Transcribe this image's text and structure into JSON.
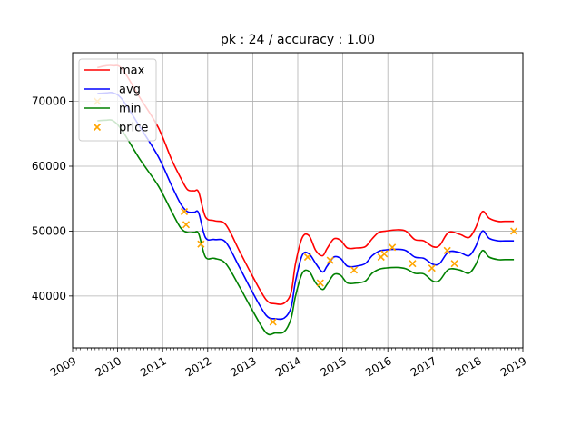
{
  "chart_data": {
    "type": "line",
    "title": "pk : 24 / accuracy : 1.00",
    "xlabel": "",
    "ylabel": "",
    "grid": true,
    "legend_position": "top-left",
    "xlim": [
      2009.0,
      2019.0
    ],
    "ylim": [
      32000,
      77500
    ],
    "x_ticks": [
      2009,
      2010,
      2011,
      2012,
      2013,
      2014,
      2015,
      2016,
      2017,
      2018,
      2019
    ],
    "x_tick_labels": [
      "2009",
      "2010",
      "2011",
      "2012",
      "2013",
      "2014",
      "2015",
      "2016",
      "2017",
      "2018",
      "2019"
    ],
    "y_ticks": [
      40000,
      50000,
      60000,
      70000
    ],
    "y_tick_labels": [
      "40000",
      "50000",
      "60000",
      "70000"
    ],
    "series": [
      {
        "name": "max",
        "kind": "line",
        "color": "#ff0000",
        "x": [
          2009.55,
          2009.75,
          2009.9,
          2010.1,
          2010.5,
          2010.9,
          2011.2,
          2011.4,
          2011.55,
          2011.7,
          2011.8,
          2011.95,
          2012.15,
          2012.4,
          2012.7,
          2013.0,
          2013.3,
          2013.5,
          2013.7,
          2013.85,
          2013.95,
          2014.1,
          2014.25,
          2014.4,
          2014.55,
          2014.65,
          2014.8,
          2014.95,
          2015.1,
          2015.3,
          2015.5,
          2015.65,
          2015.8,
          2015.95,
          2016.2,
          2016.4,
          2016.6,
          2016.8,
          2017.0,
          2017.15,
          2017.35,
          2017.6,
          2017.8,
          2017.95,
          2018.1,
          2018.25,
          2018.45,
          2018.6,
          2018.8
        ],
        "y": [
          75200,
          75500,
          75500,
          75000,
          70500,
          66000,
          61000,
          58200,
          56400,
          56200,
          56000,
          52200,
          51600,
          51000,
          47000,
          43000,
          39400,
          38800,
          38900,
          40500,
          45000,
          49000,
          49300,
          47000,
          46200,
          47300,
          48800,
          48600,
          47400,
          47400,
          47600,
          48800,
          49800,
          50000,
          50200,
          50000,
          48700,
          48500,
          47600,
          47800,
          49800,
          49500,
          49000,
          50500,
          53000,
          52000,
          51500,
          51500,
          51500
        ]
      },
      {
        "name": "avg",
        "kind": "line",
        "color": "#0000ff",
        "x": [
          2009.55,
          2009.75,
          2009.9,
          2010.1,
          2010.5,
          2010.9,
          2011.2,
          2011.4,
          2011.55,
          2011.7,
          2011.8,
          2011.95,
          2012.15,
          2012.4,
          2012.7,
          2013.0,
          2013.3,
          2013.5,
          2013.7,
          2013.85,
          2013.95,
          2014.1,
          2014.25,
          2014.4,
          2014.55,
          2014.65,
          2014.8,
          2014.95,
          2015.1,
          2015.3,
          2015.5,
          2015.65,
          2015.8,
          2015.95,
          2016.2,
          2016.4,
          2016.6,
          2016.8,
          2017.0,
          2017.15,
          2017.35,
          2017.6,
          2017.8,
          2017.95,
          2018.1,
          2018.25,
          2018.45,
          2018.6,
          2018.8
        ],
        "y": [
          71200,
          71300,
          71300,
          70300,
          66000,
          61500,
          57000,
          54200,
          53000,
          52900,
          52800,
          49000,
          48700,
          48300,
          44500,
          40500,
          37000,
          36500,
          36600,
          38200,
          42300,
          46300,
          46500,
          45000,
          43700,
          44600,
          46000,
          45800,
          44600,
          44600,
          45000,
          46200,
          46900,
          47100,
          47200,
          47000,
          46000,
          45800,
          44900,
          45000,
          46800,
          46700,
          46200,
          47600,
          50000,
          48900,
          48500,
          48500,
          48500
        ]
      },
      {
        "name": "min",
        "kind": "line",
        "color": "#008000",
        "x": [
          2009.55,
          2009.75,
          2009.9,
          2010.1,
          2010.5,
          2010.9,
          2011.2,
          2011.4,
          2011.55,
          2011.7,
          2011.8,
          2011.95,
          2012.15,
          2012.4,
          2012.7,
          2013.0,
          2013.3,
          2013.5,
          2013.7,
          2013.85,
          2013.95,
          2014.1,
          2014.25,
          2014.4,
          2014.55,
          2014.65,
          2014.8,
          2014.95,
          2015.1,
          2015.3,
          2015.5,
          2015.65,
          2015.8,
          2015.95,
          2016.2,
          2016.4,
          2016.6,
          2016.8,
          2017.0,
          2017.15,
          2017.35,
          2017.6,
          2017.8,
          2017.95,
          2018.1,
          2018.25,
          2018.45,
          2018.6,
          2018.8
        ],
        "y": [
          67000,
          67100,
          67000,
          65500,
          61000,
          57000,
          53000,
          50500,
          49800,
          49800,
          49600,
          46000,
          45800,
          45000,
          41500,
          37700,
          34300,
          34300,
          34500,
          36500,
          40000,
          43500,
          43800,
          42000,
          41000,
          41800,
          43300,
          43200,
          42000,
          42000,
          42300,
          43500,
          44100,
          44300,
          44400,
          44200,
          43500,
          43400,
          42300,
          42400,
          44100,
          44000,
          43500,
          44800,
          47000,
          46000,
          45600,
          45600,
          45600
        ]
      },
      {
        "name": "price",
        "kind": "scatter",
        "color": "#ffa500",
        "x": [
          2009.55,
          2011.48,
          2011.52,
          2011.85,
          2013.45,
          2014.22,
          2014.5,
          2014.72,
          2015.25,
          2015.85,
          2015.92,
          2016.1,
          2016.55,
          2016.98,
          2017.32,
          2017.48,
          2018.8
        ],
        "y": [
          70000,
          53000,
          51000,
          48000,
          36000,
          46000,
          42000,
          45500,
          44000,
          46000,
          46500,
          47500,
          45000,
          44300,
          47000,
          45000,
          50000
        ]
      }
    ]
  }
}
